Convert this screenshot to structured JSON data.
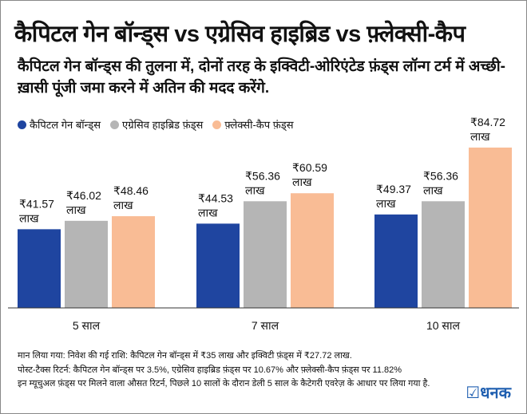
{
  "title": "कैपिटल गेन बॉन्ड्स vs एग्रेसिव हाइब्रिड vs फ़्लेक्सी-कैप",
  "subtitle": "कैपिटल गेन बॉन्ड्स की तुलना में, दोनों तरह के इक्विटी-ओरिएंटेड फ़ंड्स लॉन्ग टर्म में अच्छी-ख़ासी पूंजी जमा करने में अतिन की मदद करेंगे.",
  "notes": [
    "मान लिया गया: निवेश की गई राशि: कैपिटल गेन बॉन्ड्स में ₹35 लाख और इक्विटी फ़ंड्स में ₹27.72 लाख.",
    "पोस्ट-टैक्स रिटर्न: कैपिटल गेन बॉन्ड्स पर 3.5%, एग्रेसिव हाइब्रिड फ़ंड्स पर 10.67% और फ़्लेक्सी-कैप फ़ंड्स पर 11.82%",
    "इन म्यूचुअल फ़ंड्स पर मिलने वाला औसत रिटर्न, पिछले 10 सालों के दौरान डेली 5 साल के कैटेगरी एवरेज़ के आधार पर लिया गया है."
  ],
  "logo": "धनक",
  "chart_data": {
    "type": "bar",
    "categories": [
      "5 साल",
      "7 साल",
      "10 साल"
    ],
    "series": [
      {
        "name": "कैपिटल गेन बॉन्ड्स",
        "color": "#1f45a0",
        "values": [
          41.57,
          44.53,
          49.37
        ]
      },
      {
        "name": "एग्रेसिव हाइब्रिड फ़ंड्स",
        "color": "#b5b5b5",
        "values": [
          46.02,
          56.36,
          56.36
        ]
      },
      {
        "name": "फ़्लेक्सी-कैप फ़ंड्स",
        "color": "#f9bc95",
        "values": [
          48.46,
          60.59,
          84.72
        ]
      }
    ],
    "value_prefix": "₹",
    "value_unit": "लाख",
    "ylim": [
      0,
      85
    ],
    "grid": false,
    "legend": "top-left"
  }
}
